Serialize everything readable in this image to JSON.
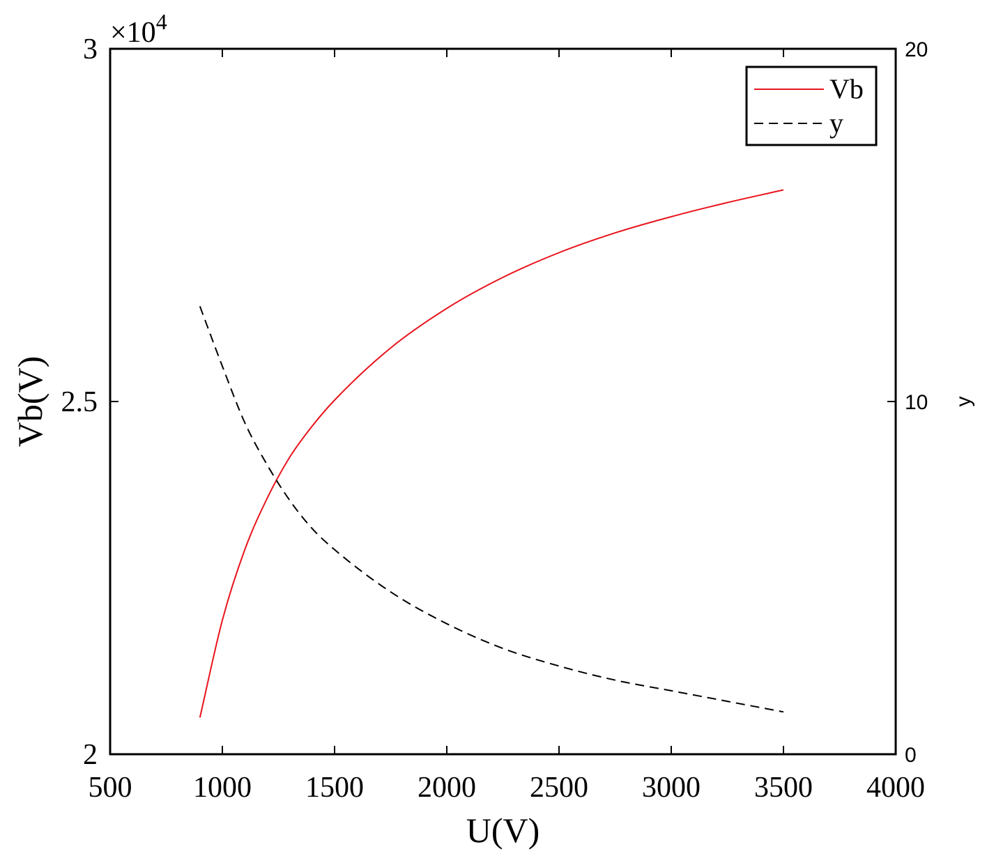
{
  "chart_data": {
    "type": "line",
    "xlabel": "U(V)",
    "ylabel_left": "Vb(V)",
    "ylabel_right": "y",
    "exponent_label": "×10",
    "exponent_power": "4",
    "xlim": [
      500,
      4000
    ],
    "ylim_left": [
      20000,
      30000
    ],
    "ylim_right": [
      0,
      20
    ],
    "xticks": [
      500,
      1000,
      1500,
      2000,
      2500,
      3000,
      3500,
      4000
    ],
    "xtick_labels": [
      "500",
      "1000",
      "1500",
      "2000",
      "2500",
      "3000",
      "3500",
      "4000"
    ],
    "yticks_left": [
      20000,
      25000,
      30000
    ],
    "ytick_labels_left": [
      "2",
      "2.5",
      "3"
    ],
    "yticks_right": [
      0,
      10,
      20
    ],
    "ytick_labels_right": [
      "0",
      "10",
      "20"
    ],
    "grid": false,
    "legend_position": "top-right",
    "series": [
      {
        "name": "Vb",
        "axis": "left",
        "color": "#e8141c",
        "dash": "solid",
        "x": [
          900,
          1000,
          1100,
          1200,
          1300,
          1400,
          1500,
          1750,
          2000,
          2250,
          2500,
          2750,
          3000,
          3250,
          3500
        ],
        "y": [
          20520,
          21900,
          22900,
          23630,
          24210,
          24650,
          25020,
          25760,
          26320,
          26760,
          27110,
          27390,
          27620,
          27820,
          28000
        ]
      },
      {
        "name": "y",
        "axis": "right",
        "color": "#000000",
        "dash": "dashed",
        "x": [
          900,
          1000,
          1100,
          1200,
          1300,
          1400,
          1500,
          1750,
          2000,
          2250,
          2500,
          2750,
          3000,
          3250,
          3500
        ],
        "y": [
          12.7,
          11.0,
          9.4,
          8.2,
          7.2,
          6.4,
          5.8,
          4.6,
          3.7,
          3.0,
          2.5,
          2.1,
          1.8,
          1.5,
          1.2
        ]
      }
    ]
  }
}
